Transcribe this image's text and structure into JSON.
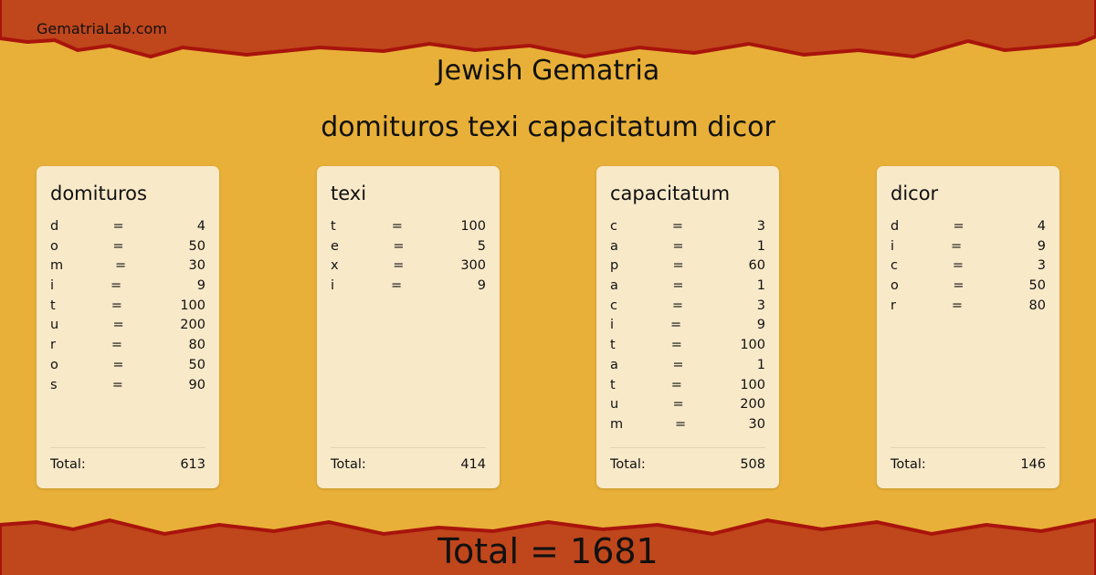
{
  "site": "GematriaLab.com",
  "title": "Jewish Gematria",
  "phrase": "domituros texi capacitatum dicor",
  "colors": {
    "band": "#c0461c",
    "band_edge": "#a8140c",
    "background": "#e8b038",
    "card": "#f8e9c9"
  },
  "words": [
    {
      "word": "domituros",
      "rows": [
        [
          "d",
          "=",
          "4"
        ],
        [
          "o",
          "=",
          "50"
        ],
        [
          "m",
          "=",
          "30"
        ],
        [
          "i",
          "=",
          "9"
        ],
        [
          "t",
          "=",
          "100"
        ],
        [
          "u",
          "=",
          "200"
        ],
        [
          "r",
          "=",
          "80"
        ],
        [
          "o",
          "=",
          "50"
        ],
        [
          "s",
          "=",
          "90"
        ]
      ],
      "total_label": "Total:",
      "total": "613"
    },
    {
      "word": "texi",
      "rows": [
        [
          "t",
          "=",
          "100"
        ],
        [
          "e",
          "=",
          "5"
        ],
        [
          "x",
          "=",
          "300"
        ],
        [
          "i",
          "=",
          "9"
        ]
      ],
      "total_label": "Total:",
      "total": "414"
    },
    {
      "word": "capacitatum",
      "rows": [
        [
          "c",
          "=",
          "3"
        ],
        [
          "a",
          "=",
          "1"
        ],
        [
          "p",
          "=",
          "60"
        ],
        [
          "a",
          "=",
          "1"
        ],
        [
          "c",
          "=",
          "3"
        ],
        [
          "i",
          "=",
          "9"
        ],
        [
          "t",
          "=",
          "100"
        ],
        [
          "a",
          "=",
          "1"
        ],
        [
          "t",
          "=",
          "100"
        ],
        [
          "u",
          "=",
          "200"
        ],
        [
          "m",
          "=",
          "30"
        ]
      ],
      "total_label": "Total:",
      "total": "508"
    },
    {
      "word": "dicor",
      "rows": [
        [
          "d",
          "=",
          "4"
        ],
        [
          "i",
          "=",
          "9"
        ],
        [
          "c",
          "=",
          "3"
        ],
        [
          "o",
          "=",
          "50"
        ],
        [
          "r",
          "=",
          "80"
        ]
      ],
      "total_label": "Total:",
      "total": "146"
    }
  ],
  "grand_total": "Total = 1681"
}
